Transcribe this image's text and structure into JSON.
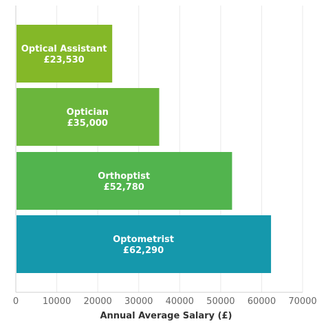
{
  "chart_data": {
    "type": "bar",
    "orientation": "horizontal",
    "categories": [
      "Optical Assistant",
      "Optician",
      "Orthoptist",
      "Optometrist"
    ],
    "values": [
      23530,
      35000,
      52780,
      62290
    ],
    "value_labels": [
      "£23,530",
      "£35,000",
      "£52,780",
      "£62,290"
    ],
    "colors": [
      "#84b828",
      "#6bb63c",
      "#52b44e",
      "#1598ac"
    ],
    "title": "",
    "xlabel": "Annual Average Salary (£)",
    "ylabel": "",
    "xlim": [
      0,
      70000
    ],
    "xticks": [
      0,
      10000,
      20000,
      30000,
      40000,
      50000,
      60000,
      70000
    ],
    "xtick_labels": [
      "0",
      "10000",
      "20000",
      "30000",
      "40000",
      "50000",
      "60000",
      "70000"
    ],
    "grid": true,
    "legend": "none"
  }
}
